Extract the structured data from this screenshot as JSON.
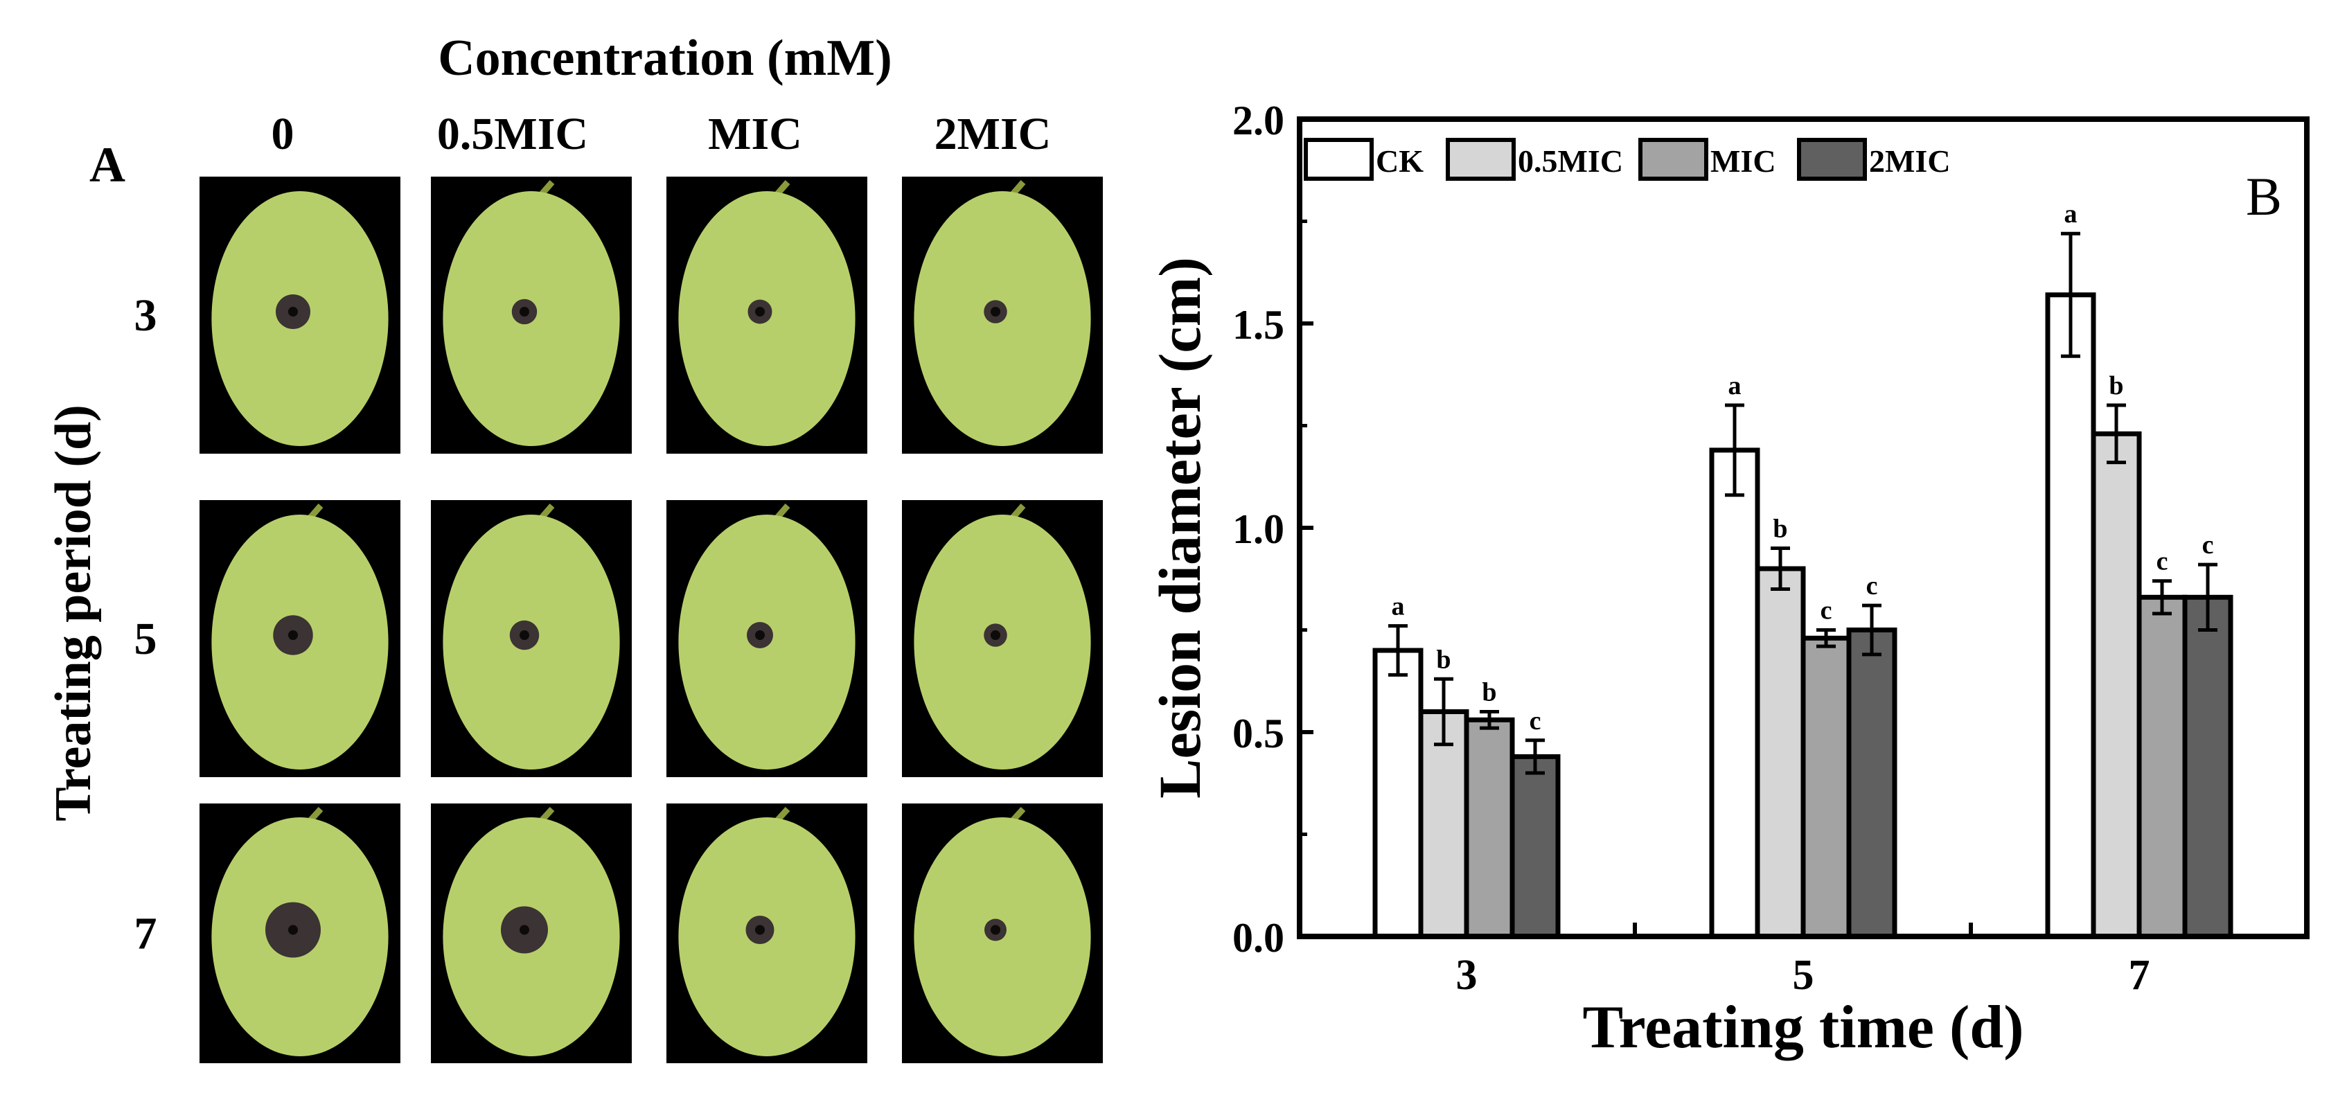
{
  "panel_a": {
    "letter": "A",
    "title": "Concentration (mM)",
    "col_labels": [
      "0",
      "0.5MIC",
      "MIC",
      "2MIC"
    ],
    "row_axis_label": "Treating period (d)",
    "row_labels": [
      "3",
      "5",
      "7"
    ],
    "fruit_color": "#b7cf6a",
    "lesion_color": "#3b3334",
    "photo_background": "#000000",
    "relative_lesion_size": [
      [
        1.0,
        0.55,
        0.5,
        0.45
      ],
      [
        1.25,
        0.75,
        0.6,
        0.45
      ],
      [
        2.0,
        1.6,
        0.7,
        0.4
      ]
    ]
  },
  "chart_data": {
    "type": "bar",
    "panel_letter": "B",
    "categories": [
      "3",
      "5",
      "7"
    ],
    "xlabel": "Treating time (d)",
    "ylabel": "Lesion diameter (cm)",
    "ylim": [
      0.0,
      2.0
    ],
    "yticks": [
      "0.0",
      "0.5",
      "1.0",
      "1.5",
      "2.0"
    ],
    "legend_position": "top-left",
    "series": [
      {
        "name": "CK",
        "color": "#ffffff",
        "values": [
          0.7,
          1.19,
          1.57
        ],
        "errors": [
          0.06,
          0.11,
          0.15
        ],
        "letters": [
          "a",
          "a",
          "a"
        ]
      },
      {
        "name": "0.5MIC",
        "color": "#d6d6d6",
        "values": [
          0.55,
          0.9,
          1.23
        ],
        "errors": [
          0.08,
          0.05,
          0.07
        ],
        "letters": [
          "b",
          "b",
          "b"
        ]
      },
      {
        "name": "MIC",
        "color": "#a3a3a3",
        "values": [
          0.53,
          0.73,
          0.83
        ],
        "errors": [
          0.02,
          0.02,
          0.04
        ],
        "letters": [
          "b",
          "c",
          "c"
        ]
      },
      {
        "name": "2MIC",
        "color": "#606060",
        "values": [
          0.44,
          0.75,
          0.83
        ],
        "errors": [
          0.04,
          0.06,
          0.08
        ],
        "letters": [
          "c",
          "c",
          "c"
        ]
      }
    ]
  }
}
